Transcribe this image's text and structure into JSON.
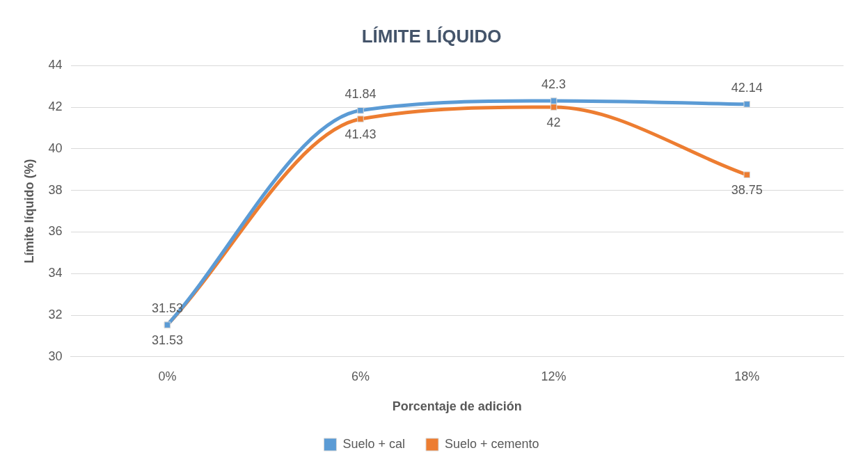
{
  "chart_data": {
    "type": "line",
    "title": "LÍMITE LÍQUIDO",
    "xlabel": "Porcentaje de adición",
    "ylabel": "Límite líquido (%)",
    "categories": [
      "0%",
      "6%",
      "12%",
      "18%"
    ],
    "series": [
      {
        "name": "Suelo + cal",
        "color": "#5b9bd5",
        "values": [
          31.53,
          41.84,
          42.3,
          42.14
        ]
      },
      {
        "name": "Suelo + cemento",
        "color": "#ed7d31",
        "values": [
          31.53,
          41.43,
          42,
          38.75
        ]
      }
    ],
    "ylim": [
      30,
      44
    ],
    "yticks": [
      30,
      32,
      34,
      36,
      38,
      40,
      42,
      44
    ],
    "grid": "y",
    "legend": "bottom",
    "marker": "square",
    "line_style": "solid",
    "data_labels": true
  }
}
